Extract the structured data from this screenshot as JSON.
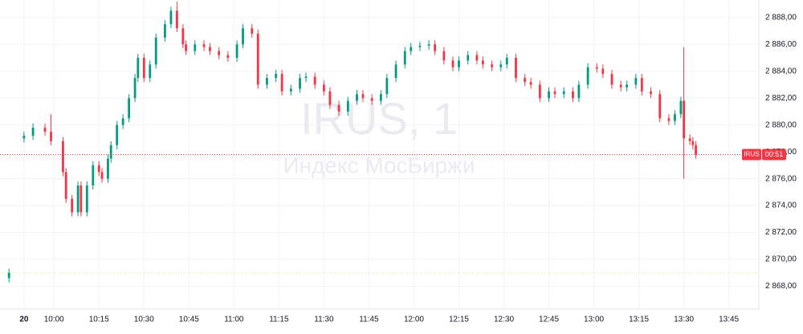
{
  "chart_data": {
    "type": "candlestick",
    "watermark": "IRUS, 1",
    "watermark_subtitle": "Индекс МосБиржи",
    "symbol_tag": "IRUS",
    "countdown": "00:51",
    "up_color": "#089981",
    "down_color": "#f23645",
    "grid": true,
    "prev_close_line": 2869,
    "xlim": [
      "9:42",
      "13:55"
    ],
    "xticks": [
      {
        "value": "9:50",
        "label": "20"
      },
      "10:00",
      "10:15",
      "10:30",
      "10:45",
      "11:00",
      "11:15",
      "11:30",
      "11:45",
      "12:00",
      "12:15",
      "12:30",
      "12:45",
      "13:00",
      "13:15",
      "13:30",
      "13:45"
    ],
    "ylim": [
      2866.3,
      2889.3
    ],
    "yticks": [
      {
        "value": 2868,
        "label": "2 868,00"
      },
      {
        "value": 2870,
        "label": "2 870,00"
      },
      {
        "value": 2872,
        "label": "2 872,00"
      },
      {
        "value": 2874,
        "label": "2 874,00"
      },
      {
        "value": 2876,
        "label": "2 876,00"
      },
      {
        "value": 2878,
        "label": "2 878,00"
      },
      {
        "value": 2880,
        "label": "2 880,00"
      },
      {
        "value": 2882,
        "label": "2 882,00"
      },
      {
        "value": 2884,
        "label": "2 884,00"
      },
      {
        "value": 2886,
        "label": "2 886,00"
      },
      {
        "value": 2888,
        "label": "2 888,00"
      }
    ],
    "x": [
      "9:45",
      "9:50",
      "9:53",
      "9:57",
      "9:59",
      "10:03",
      "10:04",
      "10:06",
      "10:08",
      "10:09",
      "10:11",
      "10:13",
      "10:15",
      "10:16",
      "10:18",
      "10:19",
      "10:21",
      "10:23",
      "10:25",
      "10:27",
      "10:28",
      "10:30",
      "10:32",
      "10:34",
      "10:37",
      "10:39",
      "10:41",
      "10:43",
      "10:44",
      "10:47",
      "10:50",
      "10:52",
      "10:55",
      "10:58",
      "11:01",
      "11:03",
      "11:06",
      "11:08",
      "11:11",
      "11:14",
      "11:16",
      "11:19",
      "11:22",
      "11:24",
      "11:27",
      "11:30",
      "11:32",
      "11:35",
      "11:38",
      "11:41",
      "11:43",
      "11:46",
      "11:49",
      "11:51",
      "11:54",
      "11:57",
      "11:59",
      "12:02",
      "12:05",
      "12:07",
      "12:10",
      "12:13",
      "12:15",
      "12:18",
      "12:21",
      "12:23",
      "12:26",
      "12:29",
      "12:31",
      "12:34",
      "12:37",
      "12:39",
      "12:42",
      "12:45",
      "12:47",
      "12:50",
      "12:53",
      "12:55",
      "12:58",
      "13:01",
      "13:03",
      "13:06",
      "13:09",
      "13:11",
      "13:14",
      "13:16",
      "13:19",
      "13:22",
      "13:25",
      "13:27",
      "13:29",
      "13:30",
      "13:32",
      "13:33",
      "13:34"
    ],
    "open": [
      2868.6,
      2879.0,
      2879.2,
      2879.8,
      2879.5,
      2878.8,
      2876.5,
      2874.5,
      2873.5,
      2875.5,
      2873.5,
      2875.5,
      2877,
      2876.5,
      2876,
      2877.5,
      2878.5,
      2880,
      2880.5,
      2882,
      2883.5,
      2885,
      2883.5,
      2884.5,
      2886.5,
      2887.5,
      2888.5,
      2887.2,
      2886,
      2885.5,
      2886,
      2885.8,
      2885.5,
      2885.2,
      2885,
      2886,
      2887.2,
      2886.8,
      2883,
      2883.5,
      2883.8,
      2882.5,
      2882.7,
      2883.5,
      2883.6,
      2883,
      2882.5,
      2881.5,
      2881,
      2881.8,
      2882.3,
      2882,
      2881.8,
      2882.3,
      2883.5,
      2884.5,
      2885.5,
      2885.8,
      2885.9,
      2886,
      2885.5,
      2884.8,
      2884.3,
      2884.8,
      2885.2,
      2884.8,
      2884.5,
      2884.3,
      2884.5,
      2885,
      2883.5,
      2883.2,
      2883,
      2882,
      2882.5,
      2882.3,
      2882.5,
      2882,
      2883,
      2884.3,
      2884.2,
      2883.8,
      2883,
      2882.8,
      2883,
      2883.5,
      2882.5,
      2882.3,
      2880.5,
      2880.3,
      2880.8,
      2881.8,
      2879,
      2878.8,
      2878.5
    ],
    "high": [
      2869.3,
      2879.5,
      2880.1,
      2880.1,
      2880.8,
      2879.1,
      2876.8,
      2874.8,
      2875.8,
      2875.8,
      2875.8,
      2877.3,
      2877.3,
      2876.8,
      2877.8,
      2878.8,
      2880.3,
      2880.8,
      2882.3,
      2883.8,
      2885.3,
      2885.3,
      2884.8,
      2886.8,
      2887.8,
      2888.8,
      2889.2,
      2887.5,
      2886.3,
      2886.3,
      2886.3,
      2886.1,
      2885.8,
      2885.5,
      2886.3,
      2887.5,
      2887.5,
      2887.1,
      2883.8,
      2884.1,
      2884.1,
      2883.0,
      2883.8,
      2883.9,
      2883.9,
      2883.3,
      2882.8,
      2881.8,
      2882.1,
      2882.6,
      2882.6,
      2882.3,
      2882.6,
      2883.8,
      2884.8,
      2885.8,
      2886.1,
      2886.2,
      2886.3,
      2886.3,
      2885.8,
      2885.1,
      2885.1,
      2885.5,
      2885.5,
      2885.1,
      2884.8,
      2884.8,
      2885.3,
      2885.3,
      2883.8,
      2883.5,
      2883.3,
      2882.8,
      2882.8,
      2882.8,
      2882.8,
      2883.3,
      2884.6,
      2884.6,
      2884.5,
      2884.1,
      2883.3,
      2883.3,
      2883.8,
      2883.8,
      2882.8,
      2882.6,
      2880.8,
      2881.1,
      2882.1,
      2885.8,
      2879.3,
      2879.1,
      2878.8
    ],
    "low": [
      2868.3,
      2878.7,
      2878.9,
      2879.2,
      2878.5,
      2876.2,
      2874.2,
      2873.2,
      2873.2,
      2873.2,
      2873.2,
      2875.2,
      2876.2,
      2875.7,
      2875.7,
      2877.2,
      2878.2,
      2879.7,
      2880.2,
      2881.7,
      2883.2,
      2883.2,
      2883.2,
      2884.2,
      2886.2,
      2887.2,
      2886.9,
      2885.7,
      2885.2,
      2885.2,
      2885.5,
      2885.2,
      2884.9,
      2884.7,
      2884.7,
      2885.7,
      2886.5,
      2882.7,
      2882.7,
      2883.2,
      2882.2,
      2882.2,
      2882.4,
      2883.2,
      2882.7,
      2882.2,
      2881.2,
      2880.7,
      2880.7,
      2881.5,
      2881.7,
      2881.5,
      2881.5,
      2882,
      2883.2,
      2884.2,
      2885.2,
      2885.5,
      2885.6,
      2885.2,
      2884.5,
      2884,
      2884,
      2884.5,
      2884.5,
      2884.2,
      2884,
      2884,
      2884.2,
      2883.2,
      2882.9,
      2882.7,
      2881.7,
      2881.7,
      2882,
      2882,
      2881.7,
      2881.7,
      2882.7,
      2883.9,
      2883.5,
      2882.7,
      2882.5,
      2882.5,
      2882.7,
      2882.2,
      2882,
      2880.2,
      2880,
      2880,
      2880.5,
      2876,
      2878.5,
      2878.2,
      2877.5
    ],
    "close": [
      2869.0,
      2879.2,
      2879.8,
      2879.5,
      2878.8,
      2876.5,
      2874.5,
      2873.5,
      2875.5,
      2873.5,
      2875.5,
      2877,
      2876.5,
      2876,
      2877.5,
      2878.5,
      2880,
      2880.5,
      2882,
      2883.5,
      2885,
      2883.5,
      2884.5,
      2886.5,
      2887.5,
      2888.5,
      2887.2,
      2886,
      2885.5,
      2886,
      2885.8,
      2885.5,
      2885.2,
      2885,
      2886,
      2887.2,
      2886.8,
      2883,
      2883.5,
      2883.8,
      2882.5,
      2882.7,
      2883.5,
      2883.6,
      2883,
      2882.5,
      2881.5,
      2881,
      2881.8,
      2882.3,
      2882,
      2881.8,
      2882.3,
      2883.5,
      2884.5,
      2885.5,
      2885.8,
      2885.9,
      2886,
      2885.5,
      2884.8,
      2884.3,
      2884.8,
      2885.2,
      2884.8,
      2884.5,
      2884.3,
      2884.5,
      2885,
      2883.5,
      2883.2,
      2883,
      2882,
      2882.5,
      2882.3,
      2882.5,
      2882,
      2883,
      2884.3,
      2884.2,
      2883.8,
      2883,
      2882.8,
      2883,
      2883.5,
      2882.5,
      2882.3,
      2880.5,
      2880.3,
      2880.8,
      2881.8,
      2879,
      2878.8,
      2878.5,
      2877.8
    ]
  }
}
